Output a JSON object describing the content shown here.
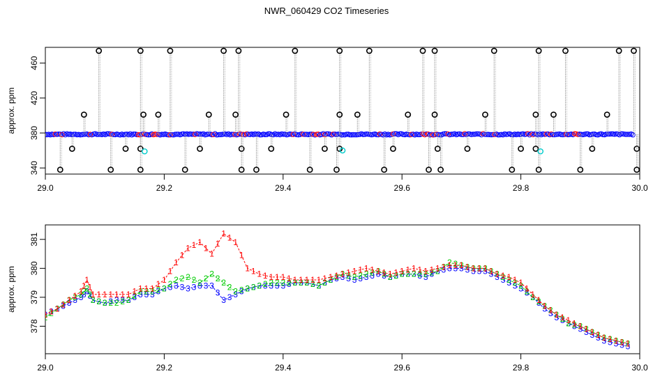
{
  "title": "NWR_060429  CO2 Timeseries",
  "colors": {
    "black": "#000000",
    "red": "#ff0000",
    "green": "#00cc00",
    "blue": "#0000ff",
    "cyan": "#00cccc",
    "gray": "#999999"
  },
  "chart_data": [
    {
      "type": "scatter",
      "ylabel": "approx. ppm",
      "xlabel": "",
      "xlim": [
        29.0,
        30.0
      ],
      "ylim": [
        333,
        478
      ],
      "x_ticks": [
        "29.0",
        "29.2",
        "29.4",
        "29.6",
        "29.8",
        "30.0"
      ],
      "y_ticks": [
        "340",
        "380",
        "420",
        "460"
      ],
      "grid": false,
      "series": [
        {
          "name": "",
          "marker": "circle",
          "color": "#000000",
          "baseline": 378.5,
          "spikes_x": [
            29.09,
            29.16,
            29.21,
            29.3,
            29.325,
            29.42,
            29.495,
            29.545,
            29.635,
            29.655,
            29.755,
            29.83,
            29.875,
            29.965,
            29.99
          ],
          "spikes_y": 474,
          "high_x": [
            29.065,
            29.165,
            29.19,
            29.275,
            29.32,
            29.405,
            29.495,
            29.525,
            29.61,
            29.655,
            29.74,
            29.825,
            29.855,
            29.945
          ],
          "high_y": 401,
          "mid_x": [
            29.045,
            29.135,
            29.16,
            29.26,
            29.33,
            29.38,
            29.47,
            29.495,
            29.585,
            29.66,
            29.71,
            29.8,
            29.825,
            29.92,
            29.995
          ],
          "mid_y": 362,
          "low_x": [
            29.025,
            29.11,
            29.16,
            29.235,
            29.33,
            29.355,
            29.445,
            29.49,
            29.57,
            29.645,
            29.665,
            29.785,
            29.83,
            29.9,
            29.995
          ],
          "low_y": 338
        },
        {
          "name": "",
          "marker": "circle",
          "color": "#00cccc",
          "x": [
            29.167,
            29.5,
            29.833
          ],
          "y": [
            359,
            360,
            359
          ]
        }
      ]
    },
    {
      "type": "line",
      "ylabel": "approx. ppm",
      "xlabel": "",
      "xlim": [
        29.0,
        30.0
      ],
      "ylim": [
        377.05,
        381.5
      ],
      "x_ticks": [
        "29.0",
        "29.2",
        "29.4",
        "29.6",
        "29.8",
        "30.0"
      ],
      "y_ticks": [
        "378",
        "379",
        "380",
        "381"
      ],
      "grid": false,
      "x": [
        29.0,
        29.02,
        29.04,
        29.06,
        29.07,
        29.08,
        29.1,
        29.12,
        29.14,
        29.16,
        29.18,
        29.2,
        29.22,
        29.24,
        29.26,
        29.28,
        29.3,
        29.32,
        29.34,
        29.36,
        29.38,
        29.4,
        29.42,
        29.44,
        29.46,
        29.48,
        29.5,
        29.52,
        29.54,
        29.56,
        29.58,
        29.6,
        29.62,
        29.64,
        29.66,
        29.68,
        29.7,
        29.72,
        29.74,
        29.76,
        29.78,
        29.8,
        29.82,
        29.84,
        29.86,
        29.88,
        29.9,
        29.92,
        29.94,
        29.96,
        29.98
      ],
      "series": [
        {
          "name": "",
          "marker_text": "1",
          "color": "#ff0000",
          "values": [
            378.4,
            378.6,
            378.9,
            379.2,
            379.6,
            379.1,
            379.1,
            379.1,
            379.1,
            379.3,
            379.3,
            379.6,
            380.2,
            380.7,
            380.9,
            380.5,
            381.2,
            380.9,
            380.0,
            379.8,
            379.7,
            379.7,
            379.6,
            379.6,
            379.6,
            379.7,
            379.8,
            379.9,
            380.0,
            379.9,
            379.8,
            379.9,
            380.0,
            379.9,
            380.0,
            380.1,
            380.1,
            380.0,
            380.0,
            379.8,
            379.7,
            379.5,
            379.1,
            378.7,
            378.4,
            378.2,
            378.0,
            377.8,
            377.6,
            377.5,
            377.4
          ]
        },
        {
          "name": "",
          "marker_text": "2",
          "color": "#00cc00",
          "values": [
            378.3,
            378.6,
            378.9,
            379.1,
            379.3,
            378.9,
            378.8,
            378.8,
            378.9,
            379.2,
            379.2,
            379.3,
            379.6,
            379.7,
            379.5,
            379.8,
            379.5,
            379.2,
            379.3,
            379.4,
            379.5,
            379.5,
            379.5,
            379.5,
            379.4,
            379.6,
            379.8,
            379.7,
            379.8,
            379.9,
            379.7,
            379.8,
            379.8,
            379.8,
            379.9,
            380.2,
            380.1,
            380.0,
            380.0,
            379.8,
            379.6,
            379.4,
            379.0,
            378.7,
            378.4,
            378.1,
            378.0,
            377.8,
            377.6,
            377.5,
            377.4
          ]
        },
        {
          "name": "",
          "marker_text": "3",
          "color": "#0000ff",
          "values": [
            378.4,
            378.6,
            378.8,
            379.0,
            379.2,
            378.9,
            378.8,
            378.9,
            378.9,
            379.1,
            379.1,
            379.3,
            379.4,
            379.3,
            379.4,
            379.4,
            378.9,
            379.1,
            379.3,
            379.4,
            379.4,
            379.4,
            379.5,
            379.5,
            379.4,
            379.6,
            379.7,
            379.6,
            379.7,
            379.8,
            379.7,
            379.8,
            379.8,
            379.7,
            379.9,
            380.0,
            380.0,
            379.9,
            379.9,
            379.7,
            379.5,
            379.3,
            379.0,
            378.6,
            378.3,
            378.1,
            377.9,
            377.7,
            377.5,
            377.4,
            377.3
          ]
        }
      ]
    }
  ]
}
